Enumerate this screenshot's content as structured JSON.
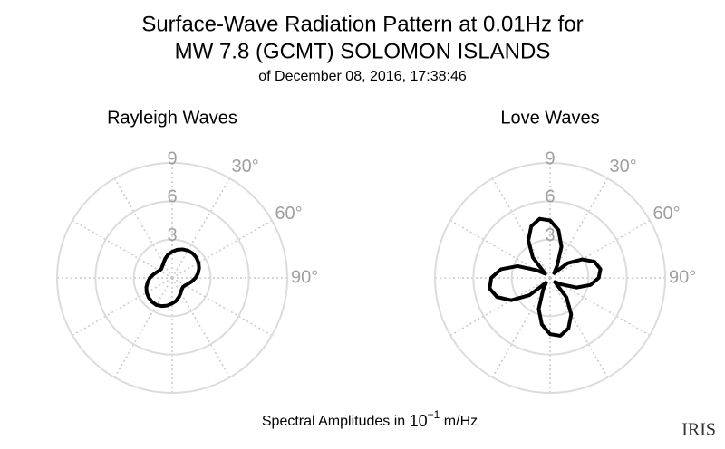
{
  "title_lines": [
    "Surface-Wave Radiation Pattern at 0.01Hz for",
    "MW 7.8 (GCMT) SOLOMON ISLANDS"
  ],
  "subtitle": "of December 08, 2016, 17:38:46",
  "xlabel": {
    "text": "Spectral Amplitudes in ",
    "base": "10",
    "exponent": "−1",
    "unit": " m/Hz"
  },
  "logo": "IRIS",
  "chart_data": [
    {
      "type": "polar",
      "title": "Rayleigh Waves",
      "color": "#000000",
      "theta": [
        0,
        10,
        20,
        30,
        40,
        50,
        60,
        70,
        80,
        90,
        100,
        110,
        120,
        130,
        140,
        150,
        160,
        170,
        180,
        190,
        200,
        210,
        220,
        230,
        240,
        250,
        260,
        270,
        280,
        290,
        300,
        310,
        320,
        330,
        340,
        350
      ],
      "values": [
        2.05,
        2.24,
        2.38,
        2.47,
        2.5,
        2.47,
        2.38,
        2.24,
        2.05,
        1.82,
        1.57,
        1.34,
        1.17,
        1.1,
        1.17,
        1.34,
        1.57,
        1.82,
        2.0,
        2.2,
        2.35,
        2.45,
        2.45,
        2.4,
        2.3,
        2.15,
        1.95,
        1.75,
        1.5,
        1.3,
        1.15,
        1.1,
        1.2,
        1.35,
        1.6,
        1.85
      ],
      "rlim": [
        0,
        9
      ],
      "rticks": [
        3,
        6,
        9
      ],
      "thetaticks": [
        {
          "value": 30,
          "label": "30°"
        },
        {
          "value": 60,
          "label": "60°"
        },
        {
          "value": 90,
          "label": "90°"
        }
      ],
      "thetagrid": [
        0,
        30,
        60,
        90,
        120,
        150,
        180,
        210,
        240,
        270,
        300,
        330
      ]
    },
    {
      "type": "polar",
      "title": "Love Waves",
      "color": "#000000",
      "theta": [
        0,
        10,
        20,
        30,
        40,
        50,
        60,
        70,
        80,
        90,
        100,
        110,
        120,
        130,
        140,
        150,
        160,
        170,
        180,
        190,
        200,
        210,
        220,
        230,
        240,
        250,
        260,
        270,
        280,
        290,
        300,
        310,
        320,
        330,
        340,
        350
      ],
      "values": [
        4.5,
        3.8,
        2.6,
        1.1,
        0.5,
        1.8,
        2.9,
        3.7,
        4.0,
        3.8,
        3.2,
        2.2,
        1.0,
        0.5,
        2.0,
        3.3,
        4.2,
        4.6,
        4.4,
        3.7,
        2.6,
        1.1,
        0.5,
        2.1,
        3.5,
        4.4,
        4.8,
        4.6,
        3.9,
        2.7,
        1.2,
        0.5,
        2.1,
        3.4,
        4.3,
        4.7
      ],
      "rlim": [
        0,
        9
      ],
      "rticks": [
        3,
        6,
        9
      ],
      "thetaticks": [
        {
          "value": 30,
          "label": "30°"
        },
        {
          "value": 60,
          "label": "60°"
        },
        {
          "value": 90,
          "label": "90°"
        }
      ],
      "thetagrid": [
        0,
        30,
        60,
        90,
        120,
        150,
        180,
        210,
        240,
        270,
        300,
        330
      ]
    }
  ]
}
